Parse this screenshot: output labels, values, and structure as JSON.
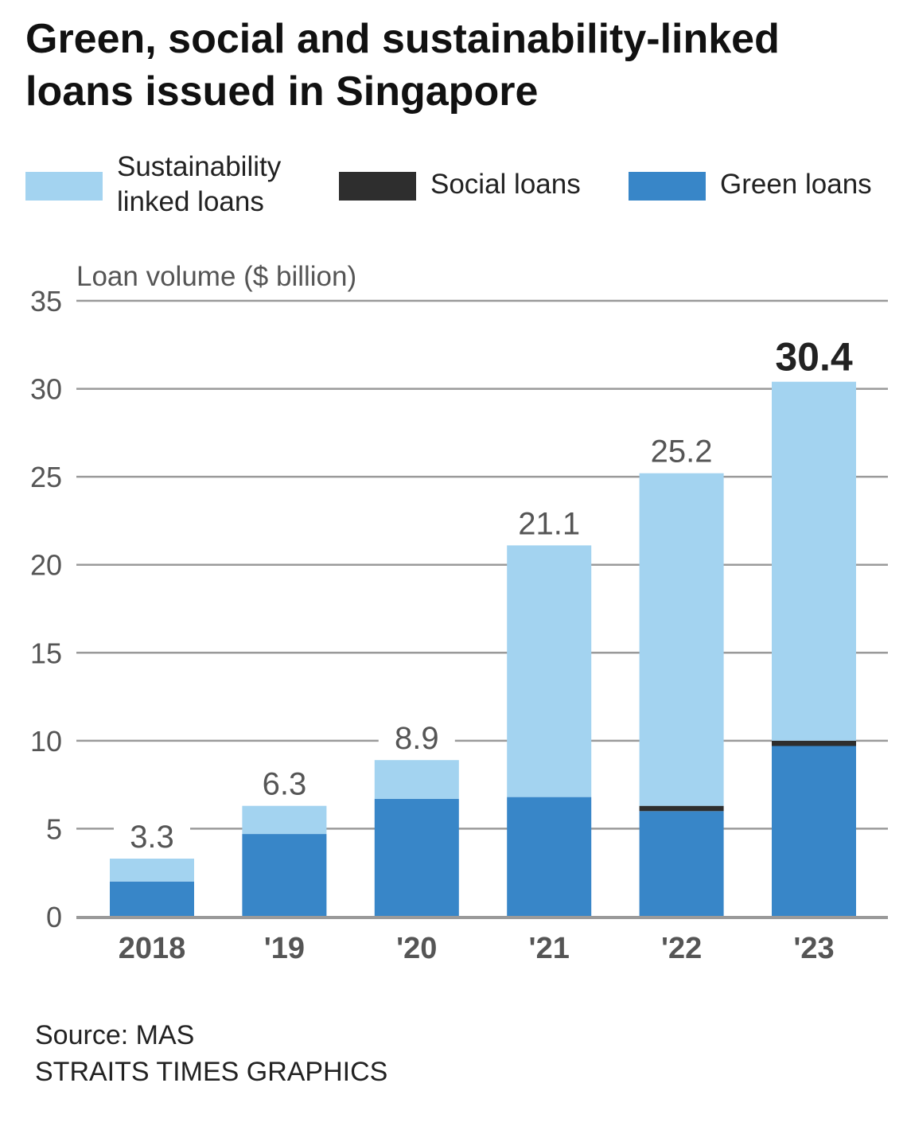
{
  "title": "Green, social and sustainability-linked loans issued in Singapore",
  "source": "Source: MAS",
  "credit": "STRAITS TIMES GRAPHICS",
  "colors": {
    "sustainability": "#a3d3f0",
    "social": "#2e2e2e",
    "green": "#3886c8",
    "grid": "#9a9a9a",
    "axis_text": "#555555",
    "total_text": "#555555",
    "highlight_text": "#222222"
  },
  "chart_data": {
    "type": "bar",
    "stacked": true,
    "ylabel": "Loan volume ($ billion)",
    "ylim": [
      0,
      35
    ],
    "yticks": [
      0,
      5,
      10,
      15,
      20,
      25,
      30,
      35
    ],
    "grid": true,
    "legend_position": "top",
    "categories": [
      "2018",
      "'19",
      "'20",
      "'21",
      "'22",
      "'23"
    ],
    "series": [
      {
        "name": "Green loans",
        "color": "#3886c8",
        "values": [
          2.0,
          4.7,
          6.7,
          6.8,
          6.0,
          9.7
        ]
      },
      {
        "name": "Social loans",
        "color": "#2e2e2e",
        "values": [
          0,
          0,
          0,
          0,
          0.3,
          0.3
        ]
      },
      {
        "name": "Sustainability linked loans",
        "color": "#a3d3f0",
        "values": [
          1.3,
          1.6,
          2.2,
          14.3,
          18.9,
          20.4
        ]
      }
    ],
    "totals": [
      "3.3",
      "6.3",
      "8.9",
      "21.1",
      "25.2",
      "30.4"
    ],
    "highlight_index": 5
  }
}
